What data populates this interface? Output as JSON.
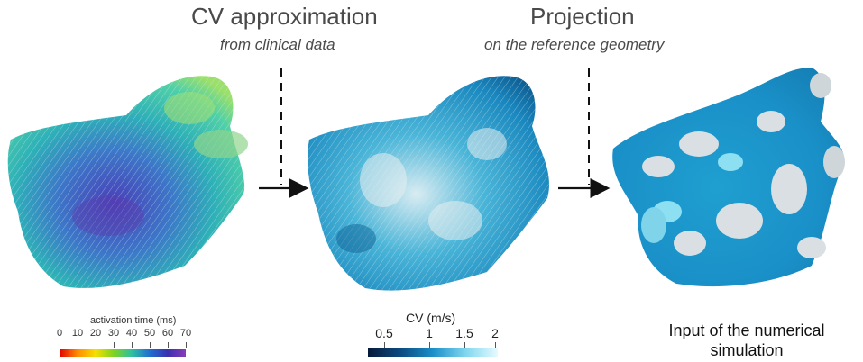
{
  "headers": {
    "cv_title": "CV approximation",
    "cv_subtitle": "from clinical data",
    "proj_title": "Projection",
    "proj_subtitle": "on the reference geometry"
  },
  "output_label": {
    "line1": "Input of the numerical",
    "line2": "simulation"
  },
  "activation_colorbar": {
    "title": "activation time (ms)",
    "ticks": [
      "0",
      "10",
      "20",
      "30",
      "40",
      "50",
      "60",
      "70"
    ]
  },
  "cv_colorbar": {
    "title": "CV (m/s)",
    "ticks": [
      "0.5",
      "1",
      "1.5",
      "2"
    ]
  },
  "colors": {
    "activation_gradient": [
      "#e00000",
      "#ff8c00",
      "#f5e000",
      "#7ed321",
      "#2ec0a0",
      "#1f6fd0",
      "#3a2fb0",
      "#8a3ab8"
    ],
    "cv_gradient": [
      "#061a3a",
      "#0b4a80",
      "#1a8fc8",
      "#7fd6ef",
      "#e6fbff"
    ]
  }
}
